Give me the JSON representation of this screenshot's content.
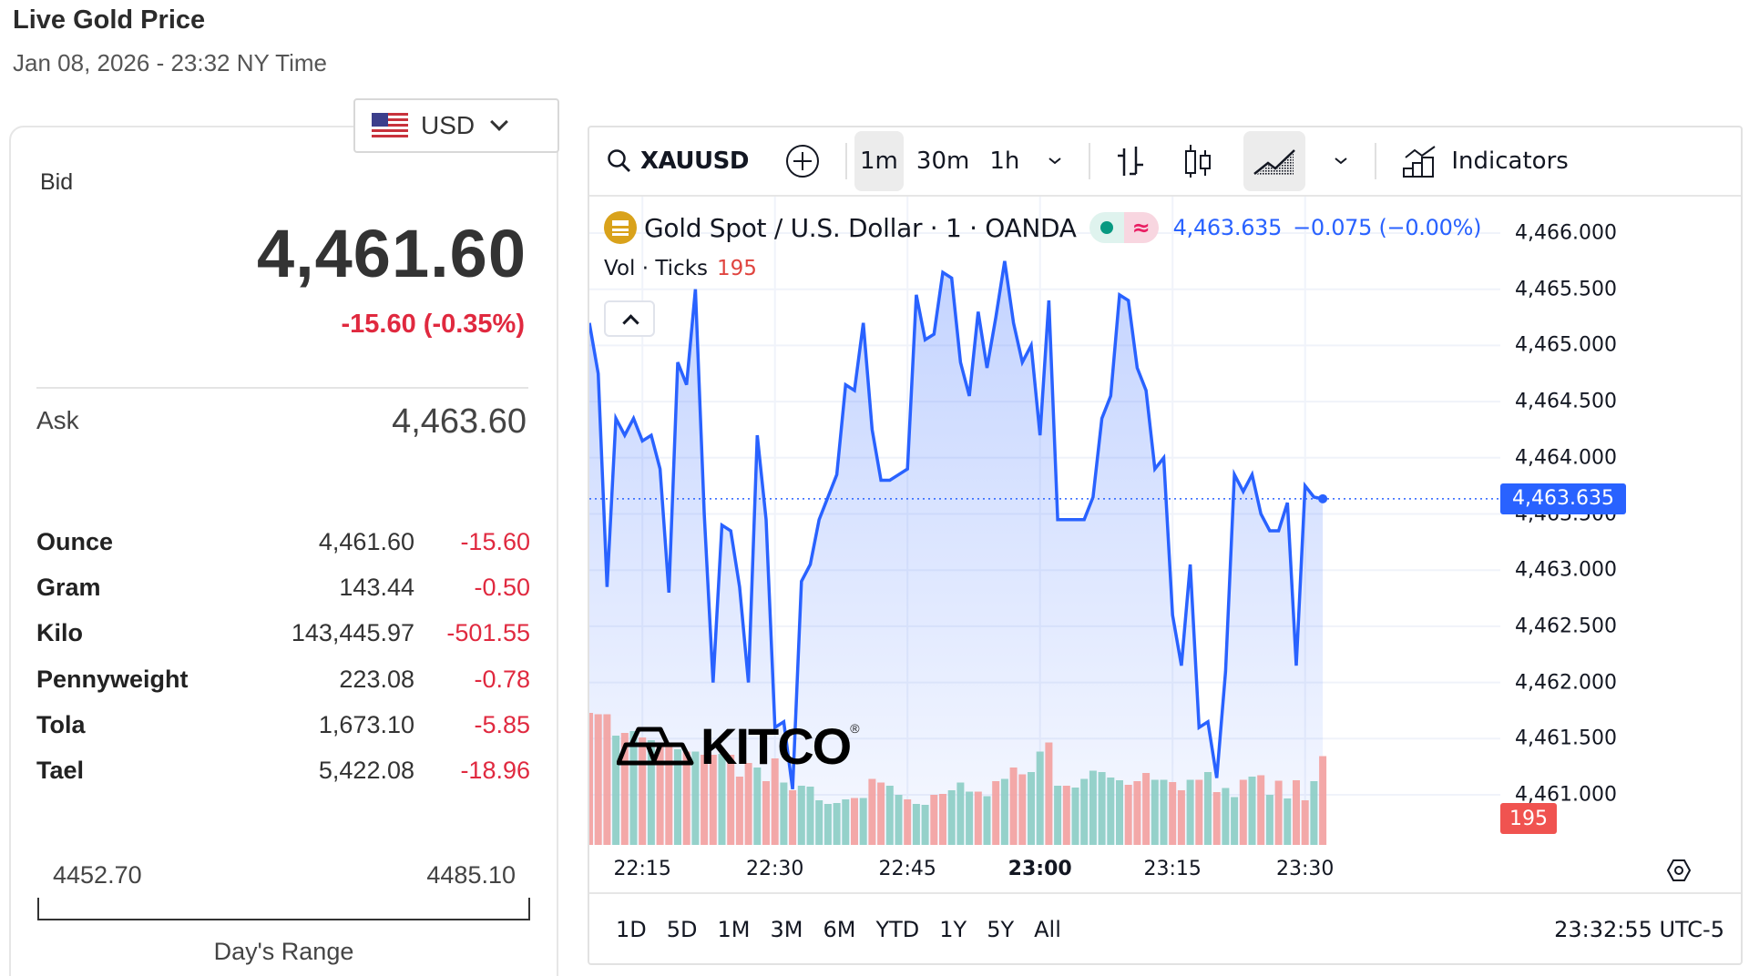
{
  "header": {
    "title": "Live Gold Price",
    "timestamp": "Jan 08, 2026 - 23:32 NY Time"
  },
  "currency_select": {
    "value": "USD",
    "icon": "us-flag-icon"
  },
  "quote": {
    "bid_label": "Bid",
    "bid": "4,461.60",
    "change": "-15.60 (-0.35%)",
    "ask_label": "Ask",
    "ask": "4,463.60",
    "change_color": "#e0293f"
  },
  "units": [
    {
      "name": "Ounce",
      "price": "4,461.60",
      "change": "-15.60"
    },
    {
      "name": "Gram",
      "price": "143.44",
      "change": "-0.50"
    },
    {
      "name": "Kilo",
      "price": "143,445.97",
      "change": "-501.55"
    },
    {
      "name": "Pennyweight",
      "price": "223.08",
      "change": "-0.78"
    },
    {
      "name": "Tola",
      "price": "1,673.10",
      "change": "-5.85"
    },
    {
      "name": "Tael",
      "price": "5,422.08",
      "change": "-18.96"
    }
  ],
  "days_range": {
    "low": "4452.70",
    "high": "4485.10",
    "label": "Day's Range"
  },
  "toolbar": {
    "symbol": "XAUUSD",
    "intervals": [
      "1m",
      "30m",
      "1h"
    ],
    "active_interval": "1m",
    "indicators_label": "Indicators"
  },
  "legend": {
    "title": "Gold Spot / U.S. Dollar · 1 · OANDA",
    "last": "4,463.635",
    "change": "−0.075 (−0.00%)",
    "vol_label": "Vol · Ticks",
    "vol_value": "195"
  },
  "price_axis": {
    "ticks": [
      "4,466.000",
      "4,465.500",
      "4,465.000",
      "4,464.500",
      "4,464.000",
      "4,463.500",
      "4,463.000",
      "4,462.500",
      "4,462.000",
      "4,461.500",
      "4,461.000"
    ],
    "last_price_tag": "4,463.635",
    "volume_tag": "195"
  },
  "time_axis": {
    "ticks": [
      "22:15",
      "22:30",
      "22:45",
      "23:00",
      "23:15",
      "23:30"
    ],
    "bold_tick": "23:00"
  },
  "periods": [
    "1D",
    "5D",
    "1M",
    "3M",
    "6M",
    "YTD",
    "1Y",
    "5Y",
    "All"
  ],
  "clock": "23:32:55 UTC-5",
  "logo": {
    "text": "KITCO",
    "mark": "®"
  },
  "colors": {
    "line": "#2962ff",
    "up_volume": "#8fcfc7",
    "down_volume": "#f2a3a3",
    "accent_blue": "#2962ff",
    "negative": "#e0293f"
  },
  "chart_data": {
    "type": "line",
    "title": "Gold Spot / U.S. Dollar · 1 · OANDA",
    "xlabel": "",
    "ylabel": "",
    "ylim": [
      4460.85,
      4466.25
    ],
    "grid": true,
    "legend_position": "top-left",
    "x": [
      "22:09",
      "22:10",
      "22:11",
      "22:12",
      "22:13",
      "22:14",
      "22:15",
      "22:16",
      "22:17",
      "22:18",
      "22:19",
      "22:20",
      "22:21",
      "22:22",
      "22:23",
      "22:24",
      "22:25",
      "22:26",
      "22:27",
      "22:28",
      "22:29",
      "22:30",
      "22:31",
      "22:32",
      "22:33",
      "22:34",
      "22:35",
      "22:36",
      "22:37",
      "22:38",
      "22:39",
      "22:40",
      "22:41",
      "22:42",
      "22:43",
      "22:44",
      "22:45",
      "22:46",
      "22:47",
      "22:48",
      "22:49",
      "22:50",
      "22:51",
      "22:52",
      "22:53",
      "22:54",
      "22:55",
      "22:56",
      "22:57",
      "22:58",
      "22:59",
      "23:00",
      "23:01",
      "23:02",
      "23:03",
      "23:04",
      "23:05",
      "23:06",
      "23:07",
      "23:08",
      "23:09",
      "23:10",
      "23:11",
      "23:12",
      "23:13",
      "23:14",
      "23:15",
      "23:16",
      "23:17",
      "23:18",
      "23:19",
      "23:20",
      "23:21",
      "23:22",
      "23:23",
      "23:24",
      "23:25",
      "23:26",
      "23:27",
      "23:28",
      "23:29",
      "23:30",
      "23:31",
      "23:32"
    ],
    "series": [
      {
        "name": "XAUUSD close",
        "values": [
          4465.2,
          4464.75,
          4462.85,
          4464.35,
          4464.2,
          4464.35,
          4464.15,
          4464.2,
          4463.9,
          4462.8,
          4464.85,
          4464.65,
          4465.5,
          4463.5,
          4462.0,
          4463.4,
          4463.35,
          4462.85,
          4462.0,
          4464.2,
          4463.45,
          4461.6,
          4461.65,
          4461.05,
          4462.9,
          4463.05,
          4463.45,
          4463.65,
          4463.85,
          4464.65,
          4464.6,
          4465.2,
          4464.25,
          4463.8,
          4463.8,
          4463.85,
          4463.9,
          4465.45,
          4465.05,
          4465.1,
          4465.65,
          4465.6,
          4464.85,
          4464.55,
          4465.3,
          4464.8,
          4465.25,
          4465.75,
          4465.2,
          4464.85,
          4465.0,
          4464.2,
          4465.4,
          4463.45,
          4463.45,
          4463.45,
          4463.45,
          4463.65,
          4464.35,
          4464.55,
          4465.45,
          4465.4,
          4464.8,
          4464.6,
          4463.9,
          4464.0,
          4462.6,
          4462.15,
          4463.05,
          4461.6,
          4461.65,
          4461.15,
          4462.1,
          4463.85,
          4463.7,
          4463.85,
          4463.5,
          4463.35,
          4463.35,
          4463.6,
          4462.15,
          4463.75,
          4463.65,
          4463.635
        ]
      },
      {
        "name": "Vol · Ticks",
        "values": [
          290,
          287,
          287,
          240,
          246,
          250,
          236,
          230,
          215,
          215,
          210,
          205,
          205,
          198,
          198,
          200,
          198,
          150,
          180,
          170,
          140,
          190,
          137,
          120,
          130,
          128,
          98,
          90,
          92,
          100,
          103,
          103,
          145,
          137,
          130,
          110,
          100,
          90,
          88,
          110,
          112,
          120,
          137,
          117,
          117,
          107,
          140,
          145,
          170,
          155,
          160,
          205,
          225,
          130,
          130,
          126,
          145,
          163,
          160,
          148,
          142,
          132,
          140,
          158,
          143,
          143,
          138,
          120,
          143,
          143,
          160,
          116,
          125,
          105,
          143,
          150,
          153,
          110,
          141,
          102,
          142,
          98,
          140,
          195
        ],
        "directions": [
          "down",
          "down",
          "down",
          "up",
          "down",
          "up",
          "down",
          "up",
          "down",
          "down",
          "up",
          "down",
          "up",
          "down",
          "down",
          "up",
          "down",
          "down",
          "down",
          "up",
          "down",
          "down",
          "up",
          "down",
          "up",
          "up",
          "up",
          "up",
          "up",
          "up",
          "down",
          "up",
          "down",
          "down",
          "up",
          "up",
          "down",
          "up",
          "up",
          "down",
          "down",
          "up",
          "up",
          "up",
          "down",
          "up",
          "down",
          "up",
          "down",
          "down",
          "up",
          "up",
          "down",
          "up",
          "down",
          "up",
          "up",
          "up",
          "up",
          "up",
          "up",
          "down",
          "down",
          "down",
          "up",
          "up",
          "down",
          "down",
          "up",
          "down",
          "up",
          "down",
          "up",
          "up",
          "down",
          "up",
          "down",
          "up",
          "down",
          "up",
          "down",
          "down",
          "up",
          "down"
        ]
      }
    ],
    "last_value": 4463.635,
    "last_change": -0.075,
    "last_change_pct": "-0.00%"
  }
}
